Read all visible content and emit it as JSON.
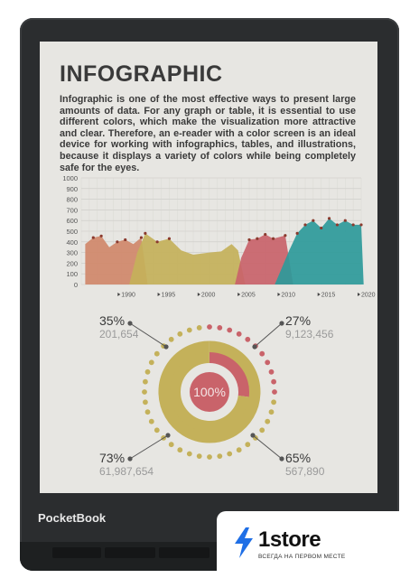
{
  "screen": {
    "title": "INFOGRAPHIC",
    "paragraph": "Infographic is one of the most effective ways to present large amounts of data. For any graph or table, it is essential to use different colors, which make the visualization more attractive and clear. Therefore, an e-reader with a color screen is an ideal device for working with infographics, tables, and illustrations, because it displays a variety of colors while being completely safe for the eyes."
  },
  "chart_data": [
    {
      "type": "area",
      "title": "",
      "xlabel": "",
      "ylabel": "",
      "x_tick_labels": [
        "1990",
        "1995",
        "2000",
        "2005",
        "2010",
        "2015",
        "2020"
      ],
      "y_tick_labels": [
        "0",
        "100",
        "200",
        "300",
        "400",
        "500",
        "600",
        "700",
        "800",
        "900",
        "1000"
      ],
      "ylim": [
        0,
        1000
      ],
      "grid": true,
      "series": [
        {
          "color": "#d0886a",
          "points": [
            [
              1985.5,
              380
            ],
            [
              1986.5,
              440
            ],
            [
              1987.5,
              455
            ],
            [
              1988.5,
              350
            ],
            [
              1989.5,
              400
            ],
            [
              1990.5,
              420
            ],
            [
              1991.5,
              380
            ],
            [
              1992.5,
              440
            ],
            [
              1993.3,
              0
            ]
          ]
        },
        {
          "color": "#c4b15a",
          "points": [
            [
              1991,
              0
            ],
            [
              1992,
              300
            ],
            [
              1993,
              480
            ],
            [
              1994.5,
              400
            ],
            [
              1996,
              430
            ],
            [
              1997.5,
              320
            ],
            [
              1999,
              280
            ],
            [
              2001,
              300
            ],
            [
              2002.5,
              310
            ],
            [
              2003.8,
              380
            ],
            [
              2004.6,
              320
            ],
            [
              2005.5,
              0
            ]
          ]
        },
        {
          "color": "#c9636a",
          "points": [
            [
              2004.2,
              0
            ],
            [
              2005,
              250
            ],
            [
              2006,
              420
            ],
            [
              2007,
              430
            ],
            [
              2008,
              470
            ],
            [
              2009,
              430
            ],
            [
              2010.5,
              460
            ],
            [
              2011.5,
              0
            ]
          ]
        },
        {
          "color": "#2e9a9a",
          "points": [
            [
              2009.2,
              0
            ],
            [
              2011,
              320
            ],
            [
              2012,
              480
            ],
            [
              2013,
              560
            ],
            [
              2014,
              600
            ],
            [
              2015,
              530
            ],
            [
              2016,
              620
            ],
            [
              2017,
              560
            ],
            [
              2018,
              600
            ],
            [
              2019,
              560
            ],
            [
              2020,
              560
            ],
            [
              2020.3,
              0
            ]
          ]
        }
      ]
    },
    {
      "type": "pie",
      "center_label": "100%",
      "slices": [
        {
          "label": "35%",
          "value": 201654,
          "color": "#c9636a"
        },
        {
          "label": "27%",
          "value": 9123456,
          "color": "#c9636a"
        },
        {
          "label": "73%",
          "value": 61987654,
          "color": "#c4b15a"
        },
        {
          "label": "65%",
          "value": 567890,
          "color": "#c4b15a"
        }
      ],
      "callouts": [
        {
          "pct": "35%",
          "number": "201,654"
        },
        {
          "pct": "27%",
          "number": "9,123,456"
        },
        {
          "pct": "73%",
          "number": "61,987,654"
        },
        {
          "pct": "65%",
          "number": "567,890"
        }
      ],
      "inner_ring_fraction": 0.27
    }
  ],
  "device": {
    "brand": "PocketBook"
  },
  "badge": {
    "name": "1store",
    "tagline": "ВСЕГДА НА ПЕРВОМ МЕСТЕ"
  },
  "colors": {
    "terracotta": "#d0886a",
    "mustard": "#c4b15a",
    "rose": "#c9636a",
    "teal": "#2e9a9a",
    "badge_blue": "#1f6fe6"
  }
}
